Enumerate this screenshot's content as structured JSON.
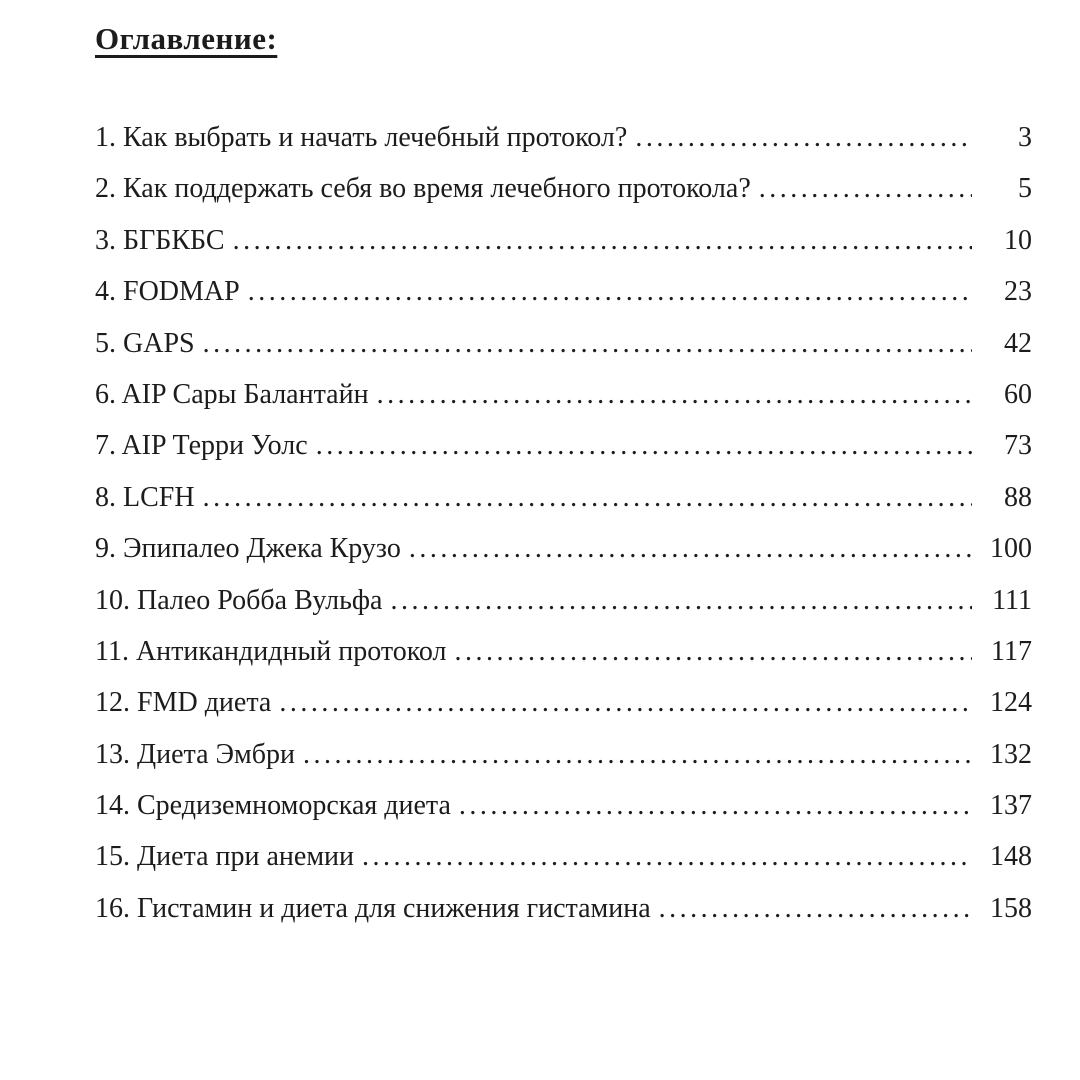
{
  "document": {
    "title": "Оглавление:",
    "leader_char": ".",
    "colors": {
      "text": "#1c1c1c",
      "background": "#ffffff"
    },
    "entries": [
      {
        "label": "1. Как выбрать и начать лечебный протокол?",
        "page": "3"
      },
      {
        "label": "2. Как поддержать себя во время лечебного протокола?",
        "page": "5"
      },
      {
        "label": "3. БГБКБС",
        "page": "10"
      },
      {
        "label": "4. FODMAP",
        "page": "23"
      },
      {
        "label": "5. GAPS",
        "page": "42"
      },
      {
        "label": "6. AIP Сары Балантайн",
        "page": "60"
      },
      {
        "label": "7. AIP Терри Уолс",
        "page": "73"
      },
      {
        "label": "8. LCFH",
        "page": "88"
      },
      {
        "label": "9. Эпипалео Джека Крузо",
        "page": "100"
      },
      {
        "label": "10. Палео Робба Вульфа",
        "page": "111"
      },
      {
        "label": "11. Антикандидный протокол",
        "page": "117"
      },
      {
        "label": "12. FMD диета",
        "page": "124"
      },
      {
        "label": "13. Диета Эмбри",
        "page": "132"
      },
      {
        "label": "14. Средиземноморская диета",
        "page": "137"
      },
      {
        "label": "15. Диета при анемии",
        "page": "148"
      },
      {
        "label": "16. Гистамин и диета для снижения гистамина",
        "page": "158"
      }
    ]
  }
}
